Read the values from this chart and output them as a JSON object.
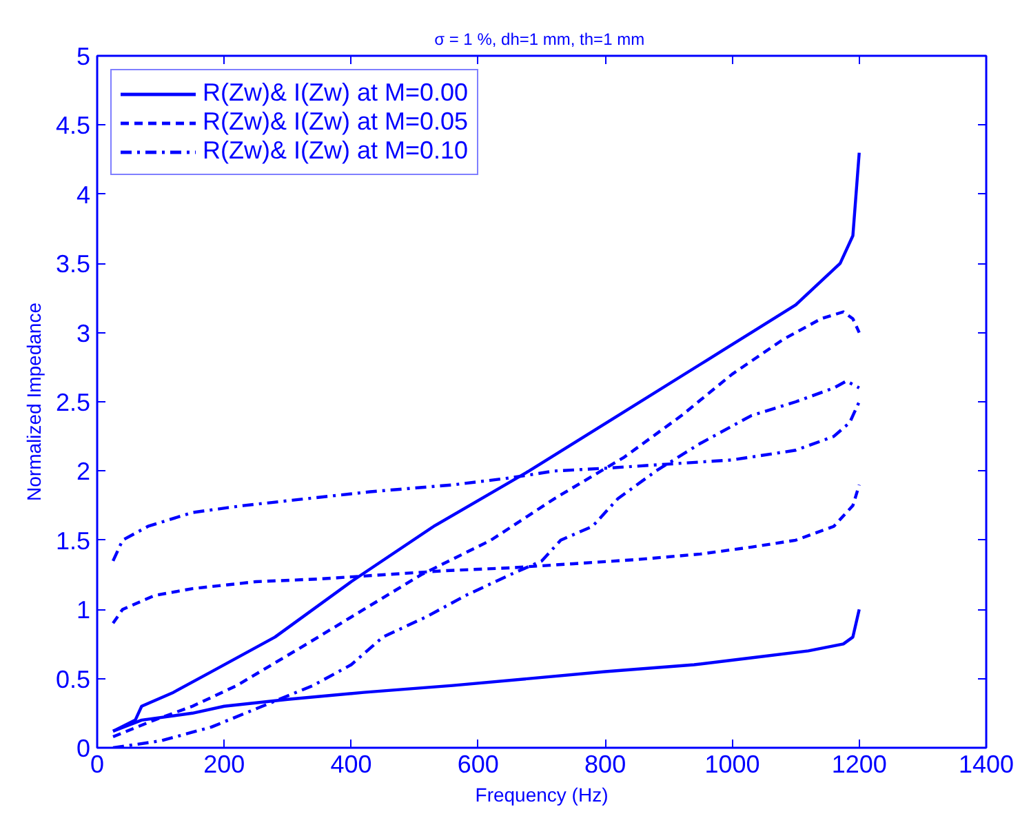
{
  "chart_data": {
    "type": "line",
    "title": "σ = 1 %, dh=1 mm, th=1  mm",
    "xlabel": "Frequency (Hz)",
    "ylabel": "Normalized Impedance",
    "xlim": [
      0,
      1400
    ],
    "ylim": [
      0,
      5
    ],
    "xticks": [
      0,
      200,
      400,
      600,
      800,
      1000,
      1200,
      1400
    ],
    "yticks": [
      0,
      0.5,
      1,
      1.5,
      2,
      2.5,
      3,
      3.5,
      4,
      4.5,
      5
    ],
    "grid": false,
    "legend": "top left",
    "marker": "none",
    "series": [
      {
        "name": "R(Zw)& I(Zw) at M=0.00",
        "color": "#0000ff",
        "line_style": "solid",
        "x": [
          25,
          60,
          70,
          120,
          180,
          280,
          400,
          530,
          680,
          820,
          960,
          1030,
          1100,
          1170,
          1190,
          1200
        ],
        "values": [
          0.12,
          0.2,
          0.3,
          0.4,
          0.55,
          0.8,
          1.2,
          1.6,
          2.0,
          2.4,
          2.8,
          3.0,
          3.2,
          3.5,
          3.7,
          4.3
        ]
      },
      {
        "color": "#0000ff",
        "line_style": "solid",
        "x": [
          25,
          70,
          150,
          200,
          300,
          420,
          560,
          680,
          800,
          940,
          1030,
          1120,
          1175,
          1190,
          1200
        ],
        "values": [
          0.12,
          0.2,
          0.25,
          0.3,
          0.35,
          0.4,
          0.45,
          0.5,
          0.55,
          0.6,
          0.65,
          0.7,
          0.75,
          0.8,
          1.0
        ]
      },
      {
        "name": "R(Zw)& I(Zw) at M=0.05",
        "color": "#0000ff",
        "line_style": "dashed",
        "x": [
          25,
          90,
          150,
          220,
          330,
          420,
          510,
          620,
          720,
          830,
          920,
          1000,
          1080,
          1140,
          1175,
          1190,
          1200
        ],
        "values": [
          0.08,
          0.2,
          0.3,
          0.45,
          0.75,
          1.0,
          1.25,
          1.5,
          1.8,
          2.1,
          2.4,
          2.7,
          2.95,
          3.1,
          3.15,
          3.1,
          3.0
        ]
      },
      {
        "color": "#0000ff",
        "line_style": "dashed",
        "x": [
          25,
          40,
          90,
          150,
          250,
          350,
          450,
          550,
          650,
          750,
          850,
          950,
          1030,
          1100,
          1160,
          1190,
          1200
        ],
        "values": [
          0.9,
          1.0,
          1.1,
          1.15,
          1.2,
          1.22,
          1.25,
          1.28,
          1.3,
          1.33,
          1.36,
          1.4,
          1.45,
          1.5,
          1.6,
          1.75,
          1.9
        ]
      },
      {
        "name": "R(Zw)& I(Zw) at M=0.10",
        "color": "#0000ff",
        "line_style": "dashdot",
        "x": [
          25,
          100,
          180,
          260,
          340,
          400,
          450,
          520,
          580,
          650,
          700,
          730,
          780,
          820,
          880,
          950,
          1030,
          1100,
          1160,
          1180,
          1200
        ],
        "values": [
          0.0,
          0.05,
          0.15,
          0.3,
          0.45,
          0.6,
          0.8,
          0.95,
          1.1,
          1.25,
          1.35,
          1.5,
          1.6,
          1.8,
          2.0,
          2.2,
          2.4,
          2.5,
          2.6,
          2.65,
          2.6
        ]
      },
      {
        "color": "#0000ff",
        "line_style": "dashdot",
        "x": [
          25,
          40,
          80,
          150,
          230,
          330,
          430,
          560,
          650,
          720,
          800,
          900,
          1000,
          1100,
          1160,
          1185,
          1200
        ],
        "values": [
          1.35,
          1.5,
          1.6,
          1.7,
          1.75,
          1.8,
          1.85,
          1.9,
          1.95,
          2.0,
          2.02,
          2.05,
          2.08,
          2.15,
          2.25,
          2.35,
          2.5
        ]
      }
    ]
  }
}
